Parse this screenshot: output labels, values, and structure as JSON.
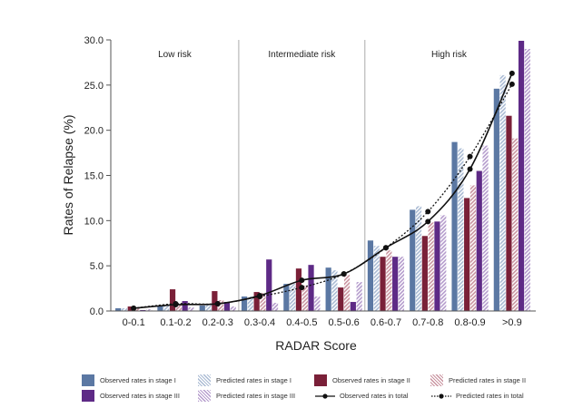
{
  "chart_data": {
    "type": "bar",
    "title": "",
    "xlabel": "RADAR Score",
    "ylabel": "Rates of Relapse (%)",
    "ylim": [
      0,
      30
    ],
    "yticks": [
      "0.0",
      "5.0",
      "10.0",
      "15.0",
      "20.0",
      "25.0",
      "30.0"
    ],
    "categories": [
      "0-0.1",
      "0.1-0.2",
      "0.2-0.3",
      "0.3-0.4",
      "0.4-0.5",
      "0.5-0.6",
      "0.6-0.7",
      "0.7-0.8",
      "0.8-0.9",
      ">0.9"
    ],
    "regions": [
      {
        "label": "Low risk",
        "from": 0,
        "to": 2
      },
      {
        "label": "Intermediate risk",
        "from": 3,
        "to": 5
      },
      {
        "label": "High risk",
        "from": 6,
        "to": 9
      }
    ],
    "series": [
      {
        "name": "Observed rates in stage I",
        "kind": "bar",
        "color": "#5b78a3",
        "hatched": false,
        "values": [
          0.3,
          0.6,
          0.6,
          1.6,
          3.0,
          4.8,
          7.8,
          11.2,
          18.7,
          24.6
        ]
      },
      {
        "name": "Predicted rates in stage I",
        "kind": "bar",
        "color": "#a9bad3",
        "hatched": true,
        "values": [
          0.3,
          0.7,
          0.7,
          1.6,
          3.0,
          4.5,
          7.2,
          11.6,
          18.0,
          26.1
        ]
      },
      {
        "name": "Observed rates in stage II",
        "kind": "bar",
        "color": "#7a2038",
        "hatched": false,
        "values": [
          0.5,
          2.4,
          2.2,
          2.1,
          4.7,
          2.6,
          6.0,
          8.3,
          12.5,
          21.6
        ]
      },
      {
        "name": "Predicted rates in stage II",
        "kind": "bar",
        "color": "#c9939f",
        "hatched": true,
        "values": [
          0.4,
          0.8,
          1.2,
          2.0,
          2.8,
          4.0,
          6.7,
          9.8,
          13.9,
          19.1
        ]
      },
      {
        "name": "Observed rates in stage III",
        "kind": "bar",
        "color": "#5e2a86",
        "hatched": false,
        "values": [
          0.1,
          1.1,
          1.0,
          5.7,
          5.1,
          1.0,
          6.0,
          9.9,
          15.5,
          29.9
        ]
      },
      {
        "name": "Predicted rates in stage III",
        "kind": "bar",
        "color": "#b49bcc",
        "hatched": true,
        "values": [
          0.2,
          0.4,
          0.5,
          0.9,
          1.6,
          3.2,
          6.0,
          10.6,
          18.3,
          29.0
        ]
      },
      {
        "name": "Observed rates in total",
        "kind": "line",
        "color": "#111111",
        "dashed": false,
        "values": [
          0.3,
          0.7,
          0.8,
          1.7,
          3.4,
          4.1,
          7.0,
          9.9,
          15.7,
          26.3
        ]
      },
      {
        "name": "Predicted rates in total",
        "kind": "line",
        "color": "#111111",
        "dashed": true,
        "values": [
          0.3,
          0.8,
          0.8,
          1.6,
          2.6,
          4.1,
          7.0,
          11.0,
          17.1,
          25.1
        ]
      }
    ],
    "legend_position": "bottom",
    "grid": false
  },
  "legend": {
    "rows": [
      [
        0,
        1,
        2,
        3
      ],
      [
        4,
        5,
        6,
        7
      ]
    ]
  }
}
